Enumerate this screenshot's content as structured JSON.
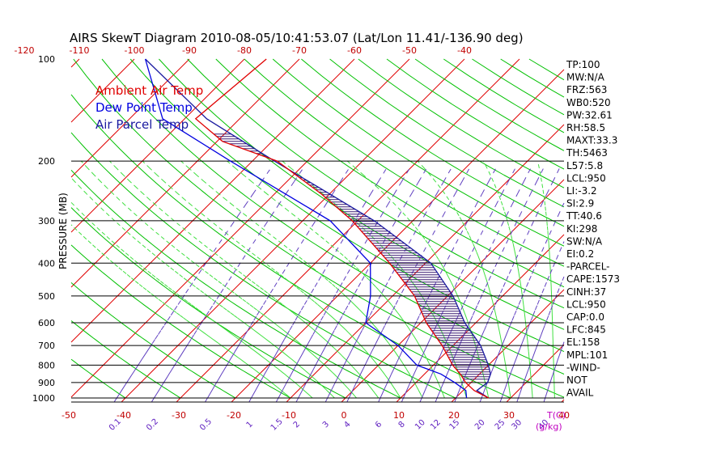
{
  "chart_data": {
    "type": "line",
    "title": "AIRS SkewT Diagram 2010-08-05/10:41:53.07 (Lat/Lon 11.41/-136.90 deg)",
    "ylabel": "PRESSURE (MB)",
    "xlabel_bottom_unit": "T(C)",
    "mixing_ratio_unit": "g/kg",
    "ylim": [
      1000,
      100
    ],
    "y_scale": "log",
    "top_axis_ticks": [
      "-120",
      "-110",
      "-100",
      "-90",
      "-80",
      "-70",
      "-60",
      "-50",
      "-40"
    ],
    "bottom_axis_ticks": [
      "-50",
      "-40",
      "-30",
      "-20",
      "-10",
      "0",
      "10",
      "20",
      "30",
      "40"
    ],
    "pressure_ticks": [
      "100",
      "200",
      "300",
      "400",
      "500",
      "600",
      "700",
      "800",
      "900",
      "1000"
    ],
    "mixing_ratio_labels": [
      "0.1",
      "0.2",
      "0.5",
      "1",
      "1.5",
      "2",
      "3",
      "4",
      "6",
      "8",
      "10",
      "12",
      "15",
      "20",
      "25",
      "30",
      "40"
    ],
    "legend": [
      {
        "label": "Ambient Air Temp",
        "color": "#e00000"
      },
      {
        "label": "Dew Point Temp",
        "color": "#0000e0"
      },
      {
        "label": "Air Parcel Temp",
        "color": "#1a1aa0"
      }
    ],
    "series": [
      {
        "name": "Ambient Air Temp",
        "color": "#e00000",
        "points": [
          [
            1000,
            26
          ],
          [
            950,
            22
          ],
          [
            900,
            19
          ],
          [
            850,
            16.5
          ],
          [
            800,
            13.5
          ],
          [
            700,
            8
          ],
          [
            600,
            1
          ],
          [
            500,
            -6
          ],
          [
            400,
            -16.5
          ],
          [
            300,
            -31
          ],
          [
            250,
            -41.5
          ],
          [
            200,
            -55.5
          ],
          [
            175,
            -69
          ],
          [
            150,
            -78
          ],
          [
            100,
            -76
          ]
        ]
      },
      {
        "name": "Dew Point Temp",
        "color": "#0000e0",
        "points": [
          [
            1000,
            22
          ],
          [
            950,
            20.5
          ],
          [
            900,
            17
          ],
          [
            850,
            13
          ],
          [
            800,
            7
          ],
          [
            700,
            0
          ],
          [
            600,
            -10
          ],
          [
            500,
            -14
          ],
          [
            400,
            -20
          ],
          [
            300,
            -35
          ],
          [
            200,
            -64
          ],
          [
            150,
            -84
          ],
          [
            100,
            -98
          ]
        ]
      },
      {
        "name": "Air Parcel Temp",
        "color": "#1a1aa0",
        "points": [
          [
            1000,
            26
          ],
          [
            950,
            22.5
          ],
          [
            900,
            23
          ],
          [
            850,
            22
          ],
          [
            800,
            20
          ],
          [
            700,
            15
          ],
          [
            600,
            8
          ],
          [
            500,
            1
          ],
          [
            400,
            -9
          ],
          [
            300,
            -27
          ],
          [
            250,
            -40
          ],
          [
            200,
            -56
          ],
          [
            150,
            -76
          ],
          [
            100,
            -98
          ]
        ]
      }
    ],
    "stats": [
      "TP:100",
      "MW:N/A",
      "FRZ:563",
      "WB0:520",
      "PW:32.61",
      "RH:58.5",
      "MAXT:33.3",
      "TH:5463",
      "L57:5.8",
      "LCL:950",
      "LI:-3.2",
      "SI:2.9",
      "TT:40.6",
      "KI:298",
      "SW:N/A",
      "EI:0.2",
      "-PARCEL-",
      "CAPE:1573",
      "CINH:37",
      "LCL:950",
      "CAP:0.0",
      "LFC:845",
      "EL:158",
      "MPL:101",
      "-WIND-",
      "NOT",
      "AVAIL"
    ],
    "colors": {
      "isotherm": "#e00000",
      "dry_adiabat": "#00c000",
      "moist_adiabat": "#40e040",
      "mixing_ratio": "#6040c0",
      "isobar": "#000000"
    }
  }
}
